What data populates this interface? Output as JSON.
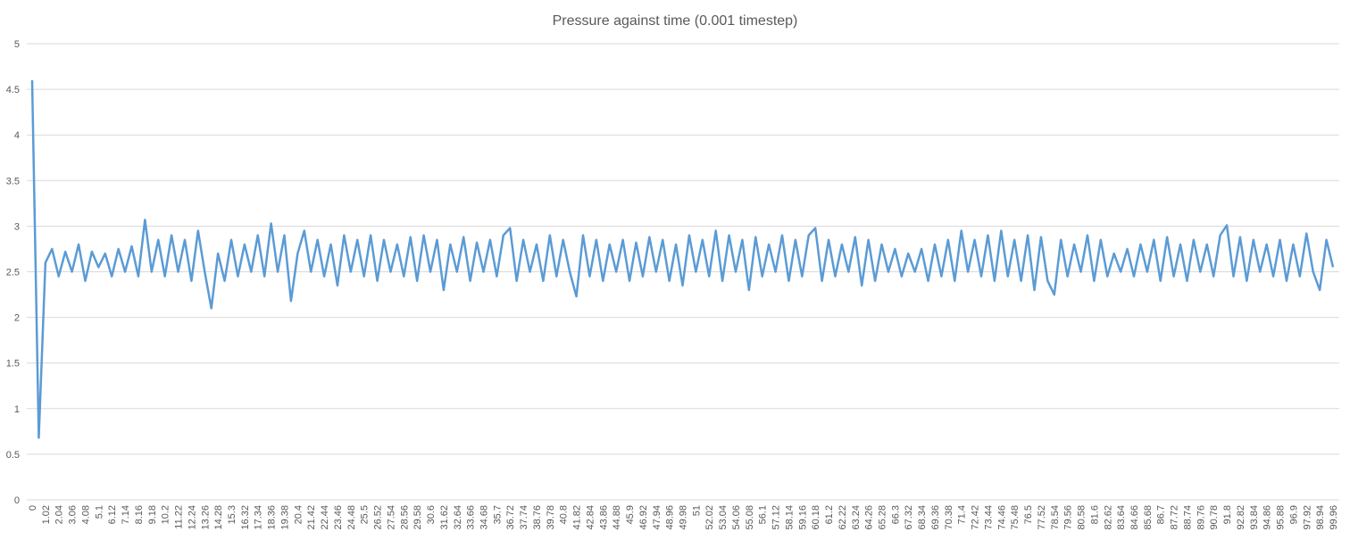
{
  "chart_data": {
    "type": "line",
    "title": "Pressure against time (0.001 timestep)",
    "categories": [
      "0",
      null,
      "1.02",
      null,
      "2.04",
      null,
      "3.06",
      null,
      "4.08",
      null,
      "5.1",
      null,
      "6.12",
      null,
      "7.14",
      null,
      "8.16",
      null,
      "9.18",
      null,
      "10.2",
      null,
      "11.22",
      null,
      "12.24",
      null,
      "13.26",
      null,
      "14.28",
      null,
      "15.3",
      null,
      "16.32",
      null,
      "17.34",
      null,
      "18.36",
      null,
      "19.38",
      null,
      "20.4",
      null,
      "21.42",
      null,
      "22.44",
      null,
      "23.46",
      null,
      "24.48",
      null,
      "25.5",
      null,
      "26.52",
      null,
      "27.54",
      null,
      "28.56",
      null,
      "29.58",
      null,
      "30.6",
      null,
      "31.62",
      null,
      "32.64",
      null,
      "33.66",
      null,
      "34.68",
      null,
      "35.7",
      null,
      "36.72",
      null,
      "37.74",
      null,
      "38.76",
      null,
      "39.78",
      null,
      "40.8",
      null,
      "41.82",
      null,
      "42.84",
      null,
      "43.86",
      null,
      "44.88",
      null,
      "45.9",
      null,
      "46.92",
      null,
      "47.94",
      null,
      "48.96",
      null,
      "49.98",
      null,
      "51",
      null,
      "52.02",
      null,
      "53.04",
      null,
      "54.06",
      null,
      "55.08",
      null,
      "56.1",
      null,
      "57.12",
      null,
      "58.14",
      null,
      "59.16",
      null,
      "60.18",
      null,
      "61.2",
      null,
      "62.22",
      null,
      "63.24",
      null,
      "64.26",
      null,
      "65.28",
      null,
      "66.3",
      null,
      "67.32",
      null,
      "68.34",
      null,
      "69.36",
      null,
      "70.38",
      null,
      "71.4",
      null,
      "72.42",
      null,
      "73.44",
      null,
      "74.46",
      null,
      "75.48",
      null,
      "76.5",
      null,
      "77.52",
      null,
      "78.54",
      null,
      "79.56",
      null,
      "80.58",
      null,
      "81.6",
      null,
      "82.62",
      null,
      "83.64",
      null,
      "84.66",
      null,
      "85.68",
      null,
      "86.7",
      null,
      "87.72",
      null,
      "88.74",
      null,
      "89.76",
      null,
      "90.78",
      null,
      "91.8",
      null,
      "92.82",
      null,
      "93.84",
      null,
      "94.86",
      null,
      "95.88",
      null,
      "96.9",
      null,
      "97.92",
      null,
      "98.94",
      null,
      "99.96"
    ],
    "values": [
      4.6,
      0.68,
      2.6,
      2.75,
      2.45,
      2.72,
      2.5,
      2.8,
      2.4,
      2.72,
      2.55,
      2.7,
      2.45,
      2.75,
      2.5,
      2.78,
      2.45,
      3.07,
      2.5,
      2.85,
      2.45,
      2.9,
      2.5,
      2.85,
      2.4,
      2.95,
      2.5,
      2.1,
      2.7,
      2.4,
      2.85,
      2.45,
      2.8,
      2.5,
      2.9,
      2.45,
      3.03,
      2.5,
      2.9,
      2.18,
      2.7,
      2.95,
      2.5,
      2.85,
      2.45,
      2.8,
      2.35,
      2.9,
      2.5,
      2.85,
      2.45,
      2.9,
      2.4,
      2.85,
      2.5,
      2.8,
      2.45,
      2.88,
      2.4,
      2.9,
      2.5,
      2.85,
      2.3,
      2.8,
      2.5,
      2.88,
      2.4,
      2.82,
      2.5,
      2.85,
      2.45,
      2.9,
      2.98,
      2.4,
      2.85,
      2.5,
      2.8,
      2.4,
      2.9,
      2.45,
      2.85,
      2.5,
      2.23,
      2.9,
      2.45,
      2.85,
      2.4,
      2.8,
      2.5,
      2.85,
      2.4,
      2.82,
      2.45,
      2.88,
      2.5,
      2.85,
      2.4,
      2.8,
      2.35,
      2.9,
      2.5,
      2.85,
      2.45,
      2.95,
      2.4,
      2.9,
      2.5,
      2.85,
      2.3,
      2.88,
      2.45,
      2.8,
      2.5,
      2.9,
      2.4,
      2.85,
      2.45,
      2.9,
      2.98,
      2.4,
      2.85,
      2.45,
      2.8,
      2.5,
      2.88,
      2.35,
      2.85,
      2.4,
      2.8,
      2.5,
      2.75,
      2.45,
      2.7,
      2.5,
      2.75,
      2.4,
      2.8,
      2.45,
      2.85,
      2.4,
      2.95,
      2.5,
      2.85,
      2.45,
      2.9,
      2.4,
      2.95,
      2.45,
      2.85,
      2.4,
      2.9,
      2.3,
      2.88,
      2.4,
      2.25,
      2.85,
      2.45,
      2.8,
      2.5,
      2.9,
      2.4,
      2.85,
      2.45,
      2.7,
      2.5,
      2.75,
      2.45,
      2.8,
      2.5,
      2.85,
      2.4,
      2.88,
      2.45,
      2.8,
      2.4,
      2.85,
      2.5,
      2.8,
      2.45,
      2.9,
      3.01,
      2.45,
      2.88,
      2.4,
      2.85,
      2.5,
      2.8,
      2.45,
      2.85,
      2.4,
      2.8,
      2.45,
      2.92,
      2.5,
      2.3,
      2.85,
      2.55
    ],
    "color": "#5b9bd5",
    "ylim": [
      0,
      5
    ],
    "yticks": [
      0,
      0.5,
      1,
      1.5,
      2,
      2.5,
      3,
      3.5,
      4,
      4.5,
      5
    ],
    "grid": true
  }
}
